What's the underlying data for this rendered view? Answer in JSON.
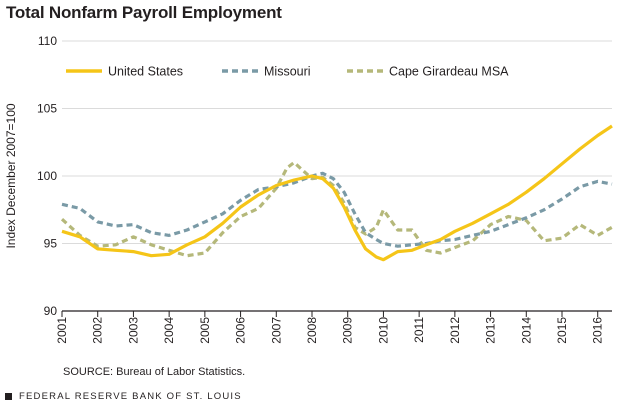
{
  "title": "Total Nonfarm Payroll Employment",
  "source": "SOURCE: Bureau of Labor Statistics.",
  "footer": "FEDERAL RESERVE BANK OF ST. LOUIS",
  "chart_data": {
    "type": "line",
    "title": "Total Nonfarm Payroll Employment",
    "ylabel": "Index December 2007=100",
    "xlabel": "",
    "ylim": [
      90,
      110
    ],
    "xlim": [
      2001,
      2016.4
    ],
    "yticks": [
      90,
      95,
      100,
      105,
      110
    ],
    "xticks": [
      "2001",
      "2002",
      "2003",
      "2004",
      "2005",
      "2006",
      "2007",
      "2008",
      "2009",
      "2010",
      "2011",
      "2012",
      "2013",
      "2014",
      "2015",
      "2016"
    ],
    "grid": "horizontal",
    "legend": "top",
    "series": [
      {
        "name": "United States",
        "color": "#f5c518",
        "style": "solid",
        "x": [
          2001.0,
          2001.5,
          2002.0,
          2002.5,
          2003.0,
          2003.5,
          2004.0,
          2004.5,
          2005.0,
          2005.5,
          2006.0,
          2006.5,
          2007.0,
          2007.5,
          2008.0,
          2008.3,
          2008.6,
          2008.9,
          2009.2,
          2009.5,
          2009.8,
          2010.0,
          2010.4,
          2010.8,
          2011.2,
          2011.6,
          2012.0,
          2012.5,
          2013.0,
          2013.5,
          2014.0,
          2014.5,
          2015.0,
          2015.5,
          2016.0,
          2016.4
        ],
        "y": [
          95.9,
          95.5,
          94.6,
          94.5,
          94.4,
          94.1,
          94.2,
          94.9,
          95.5,
          96.5,
          97.7,
          98.6,
          99.3,
          99.7,
          100.0,
          99.8,
          99.1,
          97.7,
          96.0,
          94.6,
          94.0,
          93.8,
          94.4,
          94.5,
          94.9,
          95.3,
          95.9,
          96.5,
          97.2,
          97.9,
          98.8,
          99.8,
          100.9,
          102.0,
          103.0,
          103.7
        ]
      },
      {
        "name": "Missouri",
        "color": "#7a9aa6",
        "style": "dashed",
        "x": [
          2001.0,
          2001.5,
          2002.0,
          2002.5,
          2003.0,
          2003.5,
          2004.0,
          2004.5,
          2005.0,
          2005.5,
          2006.0,
          2006.5,
          2007.0,
          2007.5,
          2008.0,
          2008.3,
          2008.6,
          2008.9,
          2009.2,
          2009.5,
          2009.8,
          2010.0,
          2010.4,
          2010.8,
          2011.2,
          2011.6,
          2012.0,
          2012.5,
          2013.0,
          2013.5,
          2014.0,
          2014.5,
          2015.0,
          2015.5,
          2016.0,
          2016.4
        ],
        "y": [
          97.9,
          97.6,
          96.6,
          96.3,
          96.4,
          95.8,
          95.6,
          96.0,
          96.6,
          97.2,
          98.2,
          99.0,
          99.2,
          99.5,
          100.0,
          100.2,
          99.8,
          98.8,
          97.2,
          95.8,
          95.3,
          95.0,
          94.8,
          94.9,
          95.0,
          95.2,
          95.3,
          95.6,
          95.9,
          96.4,
          96.9,
          97.5,
          98.3,
          99.2,
          99.6,
          99.4
        ]
      },
      {
        "name": "Cape Girardeau MSA",
        "color": "#b5b87a",
        "style": "dashed",
        "x": [
          2001.0,
          2001.5,
          2002.0,
          2002.5,
          2003.0,
          2003.5,
          2004.0,
          2004.5,
          2005.0,
          2005.5,
          2006.0,
          2006.5,
          2007.0,
          2007.3,
          2007.5,
          2008.0,
          2008.3,
          2008.6,
          2008.9,
          2009.2,
          2009.5,
          2009.8,
          2010.0,
          2010.4,
          2010.8,
          2011.2,
          2011.6,
          2012.0,
          2012.5,
          2013.0,
          2013.5,
          2014.0,
          2014.5,
          2015.0,
          2015.5,
          2016.0,
          2016.4
        ],
        "y": [
          96.8,
          95.6,
          94.8,
          94.9,
          95.5,
          94.9,
          94.5,
          94.1,
          94.3,
          95.8,
          97.0,
          97.6,
          99.1,
          100.6,
          101.0,
          99.8,
          99.9,
          99.3,
          98.0,
          96.2,
          95.7,
          96.2,
          97.5,
          96.0,
          96.0,
          94.5,
          94.3,
          94.7,
          95.2,
          96.4,
          97.0,
          96.7,
          95.2,
          95.4,
          96.4,
          95.6,
          96.2
        ]
      }
    ]
  }
}
